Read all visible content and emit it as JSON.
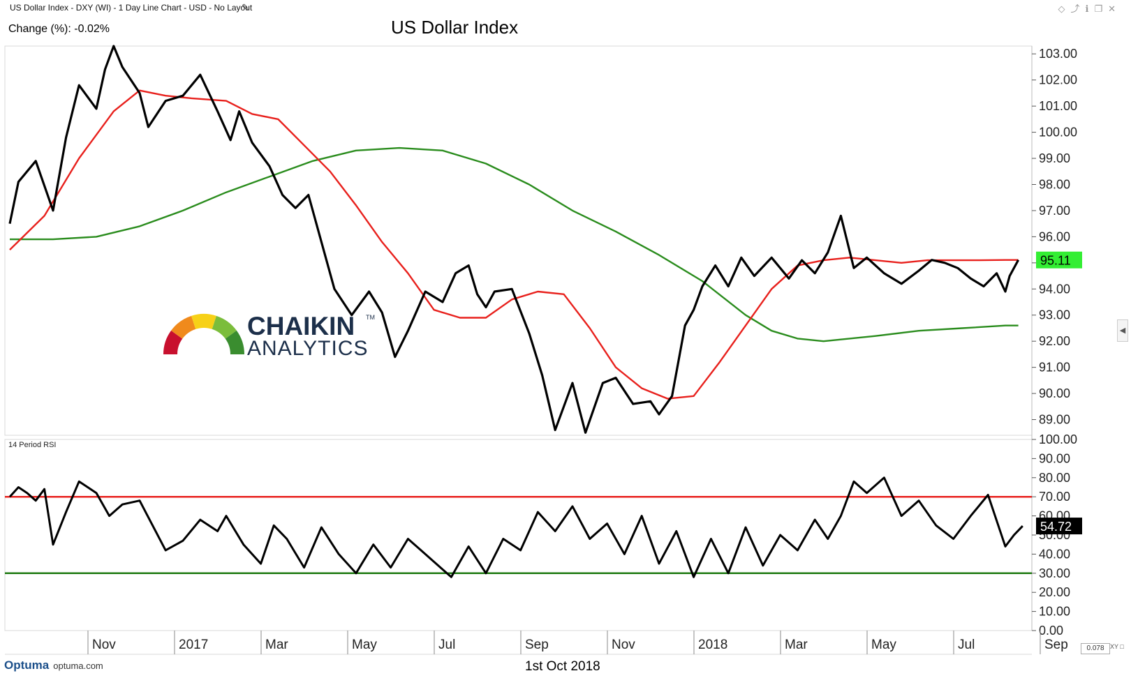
{
  "window": {
    "title": "US Dollar Index - DXY (WI) - 1 Day Line Chart - USD - No Layout",
    "edit_icon": "pencil-icon",
    "control_icons": [
      "diamond-icon",
      "pin-icon",
      "info-icon",
      "restore-icon",
      "close-icon"
    ]
  },
  "header": {
    "change": "Change (%): -0.02%",
    "title": "US Dollar Index"
  },
  "footer": {
    "date": "1st Oct 2018",
    "brand": "Optuma",
    "url": "optuma.com",
    "zoom": "0.078",
    "xy_label": "XY"
  },
  "watermark": {
    "brand_top": "CHAIKIN",
    "brand_bottom": "ANALYTICS",
    "tm": "TM",
    "gauge_colors": [
      "#c8102e",
      "#f08a1c",
      "#f7d117",
      "#7bbd3b",
      "#3a8d2f"
    ]
  },
  "colors": {
    "price": "#000000",
    "ma_short": "#e8201c",
    "ma_long": "#2a8c1d",
    "rsi_overbought": "#e8201c",
    "rsi_oversold": "#1f7a12",
    "last_price_bg": "#33ee33",
    "last_rsi_bg": "#000000"
  },
  "chart_data": [
    {
      "type": "line",
      "title": "US Dollar Index",
      "x_axis_labels": [
        "Nov",
        "2017",
        "Mar",
        "May",
        "Jul",
        "Sep",
        "Nov",
        "2018",
        "Mar",
        "May",
        "Jul",
        "Sep"
      ],
      "x_axis_positions_month_index": [
        1,
        3,
        5,
        7,
        9,
        11,
        13,
        15,
        17,
        19,
        21,
        23
      ],
      "y_ticks": [
        "103.00",
        "102.00",
        "101.00",
        "100.00",
        "99.00",
        "98.00",
        "97.00",
        "96.00",
        "95.00",
        "94.00",
        "93.00",
        "92.00",
        "91.00",
        "90.00",
        "89.00"
      ],
      "ylim": [
        88.4,
        103.3
      ],
      "last_value_label": "95.11",
      "x_unit": "month index from Oct 2016 (0) to Sep 2018 (23)",
      "series": [
        {
          "role": "price",
          "x": [
            0,
            0.2,
            0.6,
            1.0,
            1.3,
            1.6,
            2.0,
            2.2,
            2.4,
            2.6,
            3.0,
            3.2,
            3.6,
            4.0,
            4.4,
            4.8,
            5.1,
            5.3,
            5.6,
            6.0,
            6.3,
            6.6,
            6.9,
            7.2,
            7.5,
            7.9,
            8.3,
            8.6,
            8.9,
            9.2,
            9.6,
            10.0,
            10.3,
            10.6,
            10.8,
            11.0,
            11.2,
            11.6,
            12.0,
            12.3,
            12.6,
            13.0,
            13.3,
            13.7,
            14.0,
            14.4,
            14.8,
            15.0,
            15.3,
            15.6,
            15.8,
            16.0,
            16.3,
            16.6,
            16.9,
            17.2,
            17.6,
            18.0,
            18.3,
            18.6,
            18.9,
            19.2,
            19.5,
            19.8,
            20.2,
            20.6,
            21.0,
            21.3,
            21.6,
            21.9,
            22.2,
            22.5,
            22.8,
            23.0,
            23.1,
            23.3
          ],
          "y": [
            96.5,
            98.1,
            98.9,
            97.0,
            99.8,
            101.8,
            100.9,
            102.4,
            103.3,
            102.5,
            101.5,
            100.2,
            101.2,
            101.4,
            102.2,
            100.8,
            99.7,
            100.8,
            99.6,
            98.7,
            97.6,
            97.1,
            97.6,
            95.8,
            94.0,
            93.0,
            93.9,
            93.1,
            91.4,
            92.4,
            93.9,
            93.5,
            94.6,
            94.9,
            93.8,
            93.3,
            93.9,
            94.0,
            92.3,
            90.7,
            88.6,
            90.4,
            88.5,
            90.4,
            90.6,
            89.6,
            89.7,
            89.2,
            89.9,
            92.6,
            93.2,
            94.1,
            94.9,
            94.1,
            95.2,
            94.5,
            95.2,
            94.4,
            95.1,
            94.6,
            95.4,
            96.8,
            94.8,
            95.2,
            94.6,
            94.2,
            94.7,
            95.11,
            95.0,
            94.8,
            94.4,
            94.1,
            94.6,
            93.9,
            94.5,
            95.11
          ]
        },
        {
          "role": "short-moving-average",
          "x": [
            0,
            0.8,
            1.6,
            2.4,
            3.0,
            3.6,
            4.2,
            5.0,
            5.6,
            6.2,
            6.8,
            7.4,
            8.0,
            8.6,
            9.2,
            9.8,
            10.4,
            11.0,
            11.6,
            12.2,
            12.8,
            13.4,
            14.0,
            14.6,
            15.2,
            15.8,
            16.4,
            17.0,
            17.6,
            18.2,
            18.8,
            19.4,
            20.0,
            20.6,
            21.2,
            21.8,
            22.4,
            23.0,
            23.3
          ],
          "y": [
            95.5,
            96.8,
            99.0,
            100.8,
            101.6,
            101.4,
            101.3,
            101.2,
            100.7,
            100.5,
            99.5,
            98.5,
            97.2,
            95.8,
            94.6,
            93.2,
            92.9,
            92.9,
            93.6,
            93.9,
            93.8,
            92.5,
            91.0,
            90.2,
            89.8,
            89.9,
            91.2,
            92.6,
            94.0,
            94.9,
            95.1,
            95.2,
            95.1,
            95.0,
            95.1,
            95.1,
            95.1,
            95.11,
            95.11
          ]
        },
        {
          "role": "long-moving-average",
          "x": [
            0,
            1.0,
            2.0,
            3.0,
            4.0,
            5.0,
            6.0,
            7.0,
            8.0,
            9.0,
            10.0,
            11.0,
            12.0,
            13.0,
            14.0,
            15.0,
            16.0,
            17.0,
            17.6,
            18.2,
            18.8,
            19.4,
            20.0,
            21.0,
            22.0,
            23.0,
            23.3
          ],
          "y": [
            95.9,
            95.9,
            96.0,
            96.4,
            97.0,
            97.7,
            98.3,
            98.9,
            99.3,
            99.4,
            99.3,
            98.8,
            98.0,
            97.0,
            96.2,
            95.3,
            94.3,
            93.0,
            92.4,
            92.1,
            92.0,
            92.1,
            92.2,
            92.4,
            92.5,
            92.6,
            92.6
          ]
        }
      ]
    },
    {
      "type": "line",
      "title": "14 Period RSI",
      "y_ticks": [
        "100.00",
        "90.00",
        "80.00",
        "70.00",
        "60.00",
        "50.00",
        "40.00",
        "30.00",
        "20.00",
        "10.00",
        "0.00"
      ],
      "ylim": [
        0,
        100
      ],
      "overbought": 70,
      "oversold": 30,
      "last_value_label": "54.72",
      "x_unit": "month index from Oct 2016 (0) to Sep 2018 (23)",
      "series": [
        {
          "role": "rsi",
          "x": [
            0,
            0.2,
            0.4,
            0.6,
            0.8,
            1.0,
            1.3,
            1.6,
            2.0,
            2.3,
            2.6,
            3.0,
            3.3,
            3.6,
            4.0,
            4.4,
            4.8,
            5.0,
            5.4,
            5.8,
            6.1,
            6.4,
            6.8,
            7.2,
            7.6,
            8.0,
            8.4,
            8.8,
            9.2,
            9.5,
            9.8,
            10.2,
            10.6,
            11.0,
            11.4,
            11.8,
            12.2,
            12.6,
            13.0,
            13.4,
            13.8,
            14.2,
            14.6,
            15.0,
            15.4,
            15.8,
            16.2,
            16.6,
            17.0,
            17.4,
            17.8,
            18.2,
            18.6,
            18.9,
            19.2,
            19.5,
            19.8,
            20.2,
            20.6,
            21.0,
            21.4,
            21.8,
            22.2,
            22.6,
            23.0,
            23.2,
            23.4
          ],
          "y": [
            70,
            75,
            72,
            68,
            74,
            45,
            62,
            78,
            72,
            60,
            66,
            68,
            55,
            42,
            47,
            58,
            52,
            60,
            45,
            35,
            55,
            48,
            33,
            54,
            40,
            30,
            45,
            33,
            48,
            42,
            36,
            28,
            44,
            30,
            48,
            42,
            62,
            52,
            65,
            48,
            56,
            40,
            60,
            35,
            52,
            28,
            48,
            30,
            54,
            34,
            50,
            42,
            58,
            48,
            60,
            78,
            72,
            80,
            60,
            68,
            55,
            48,
            60,
            71,
            44,
            50,
            54.72
          ]
        }
      ]
    }
  ]
}
